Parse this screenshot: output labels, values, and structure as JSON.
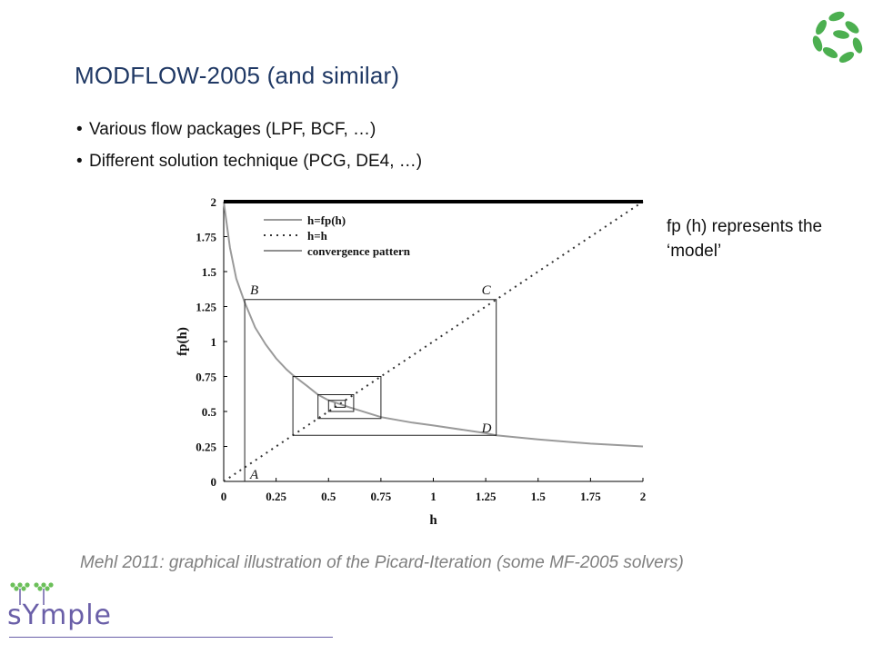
{
  "slide": {
    "title": "MODFLOW-2005 (and similar)",
    "bullets": [
      "Various flow packages (LPF, BCF, …)",
      "Different solution technique (PCG, DE4, …)"
    ],
    "side_note": "fp (h) represents the ‘model’",
    "caption": "Mehl 2011: graphical illustration of the Picard-Iteration (some MF-2005 solvers)",
    "logo_text": "sYmple",
    "colors": {
      "title": "#1f3864",
      "caption": "#7f7f7f",
      "logo": "#6a5fa8",
      "leaf": "#4caf50"
    }
  },
  "chart_data": {
    "type": "line",
    "xlabel": "h",
    "ylabel": "fp(h)",
    "xlim": [
      0,
      2
    ],
    "ylim": [
      0,
      2
    ],
    "xticks": [
      "0",
      "0.25",
      "0.5",
      "0.75",
      "1",
      "1.25",
      "1.5",
      "1.75",
      "2"
    ],
    "yticks": [
      "0",
      "0.25",
      "0.5",
      "0.75",
      "1",
      "1.25",
      "1.5",
      "1.75",
      "2"
    ],
    "legend": {
      "placement": "top-left",
      "entries": [
        "h=fp(h)",
        "h=h",
        "convergence pattern"
      ]
    },
    "series": [
      {
        "name": "h=fp(h)",
        "style": "solid-gray",
        "x": [
          0,
          0.03,
          0.06,
          0.1,
          0.15,
          0.2,
          0.25,
          0.3,
          0.33,
          0.4,
          0.45,
          0.5,
          0.6,
          0.75,
          0.9,
          1.0,
          1.25,
          1.3,
          1.5,
          1.75,
          2.0
        ],
        "y": [
          2.0,
          1.67,
          1.45,
          1.28,
          1.1,
          0.98,
          0.88,
          0.8,
          0.76,
          0.68,
          0.62,
          0.58,
          0.53,
          0.46,
          0.42,
          0.4,
          0.345,
          0.33,
          0.3,
          0.27,
          0.25
        ]
      },
      {
        "name": "h=h",
        "style": "dotted",
        "x": [
          0,
          2
        ],
        "y": [
          0,
          2
        ]
      },
      {
        "name": "convergence pattern",
        "style": "solid-black",
        "x": [
          0.1,
          0.1,
          1.3,
          1.3,
          0.33,
          0.33,
          0.75,
          0.75,
          0.45,
          0.45,
          0.62,
          0.62,
          0.5,
          0.5,
          0.58,
          0.58,
          0.53,
          0.53
        ],
        "y": [
          0,
          1.3,
          1.3,
          0.33,
          0.33,
          0.75,
          0.75,
          0.45,
          0.45,
          0.62,
          0.62,
          0.5,
          0.5,
          0.58,
          0.58,
          0.53,
          0.53,
          0.56
        ]
      },
      {
        "name": "upper bound",
        "style": "thick-black",
        "x": [
          0,
          2
        ],
        "y": [
          2,
          2
        ]
      }
    ],
    "annotations": [
      {
        "text": "A",
        "x": 0.1,
        "y": 0.0
      },
      {
        "text": "B",
        "x": 0.1,
        "y": 1.3
      },
      {
        "text": "C",
        "x": 1.3,
        "y": 1.3
      },
      {
        "text": "D",
        "x": 1.3,
        "y": 0.33
      }
    ]
  }
}
